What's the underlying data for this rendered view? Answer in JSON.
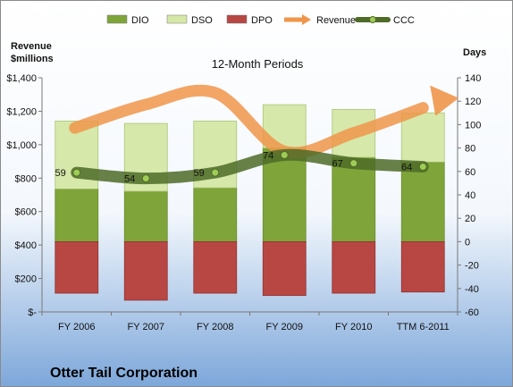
{
  "chart_data": {
    "type": "bar",
    "subtitle": "12-Month Periods",
    "company": "Otter Tail Corporation",
    "left_axis_title": [
      "Revenue",
      "$millions"
    ],
    "right_axis_title": "Days",
    "categories": [
      "FY 2006",
      "FY 2007",
      "FY 2008",
      "FY 2009",
      "FY 2010",
      "TTM 6-2011"
    ],
    "y_left": {
      "min": 0,
      "max": 1400,
      "step": 200,
      "tick_labels": [
        "$-",
        "$200",
        "$400",
        "$600",
        "$800",
        "$1,000",
        "$1,200",
        "$1,400"
      ]
    },
    "y_right": {
      "min": -60,
      "max": 140,
      "step": 20,
      "tick_labels": [
        "-60",
        "-40",
        "-20",
        "0",
        "20",
        "40",
        "60",
        "80",
        "100",
        "120",
        "140"
      ]
    },
    "legend": [
      "DIO",
      "DSO",
      "DPO",
      "Revenue",
      "CCC"
    ],
    "series": [
      {
        "name": "DIO",
        "axis": "right",
        "kind": "stacked-bar-positive",
        "values": [
          45,
          43,
          46,
          80,
          72,
          68
        ],
        "color": "#7fa53a"
      },
      {
        "name": "DSO",
        "axis": "right",
        "kind": "stacked-bar-positive",
        "values": [
          58,
          58,
          57,
          37,
          41,
          42
        ],
        "color": "#d5e8a6"
      },
      {
        "name": "DPO",
        "axis": "right",
        "kind": "bar-negative",
        "values": [
          -44,
          -50,
          -44,
          -46,
          -44,
          -43
        ],
        "color": "#b84744"
      },
      {
        "name": "Revenue",
        "axis": "left",
        "kind": "arrow-line",
        "values": [
          1100,
          1240,
          1310,
          960,
          1070,
          1220
        ],
        "color": "#f0954a"
      },
      {
        "name": "CCC",
        "axis": "right",
        "kind": "line",
        "values": [
          59,
          54,
          59,
          74,
          67,
          64
        ],
        "labels": [
          "59",
          "54",
          "59",
          "74",
          "67",
          "64"
        ],
        "color": "#4e6b28"
      }
    ]
  },
  "colors": {
    "background_top": "#ffffff",
    "background_bottom": "#7da7da",
    "border": "#8a8a8a"
  }
}
